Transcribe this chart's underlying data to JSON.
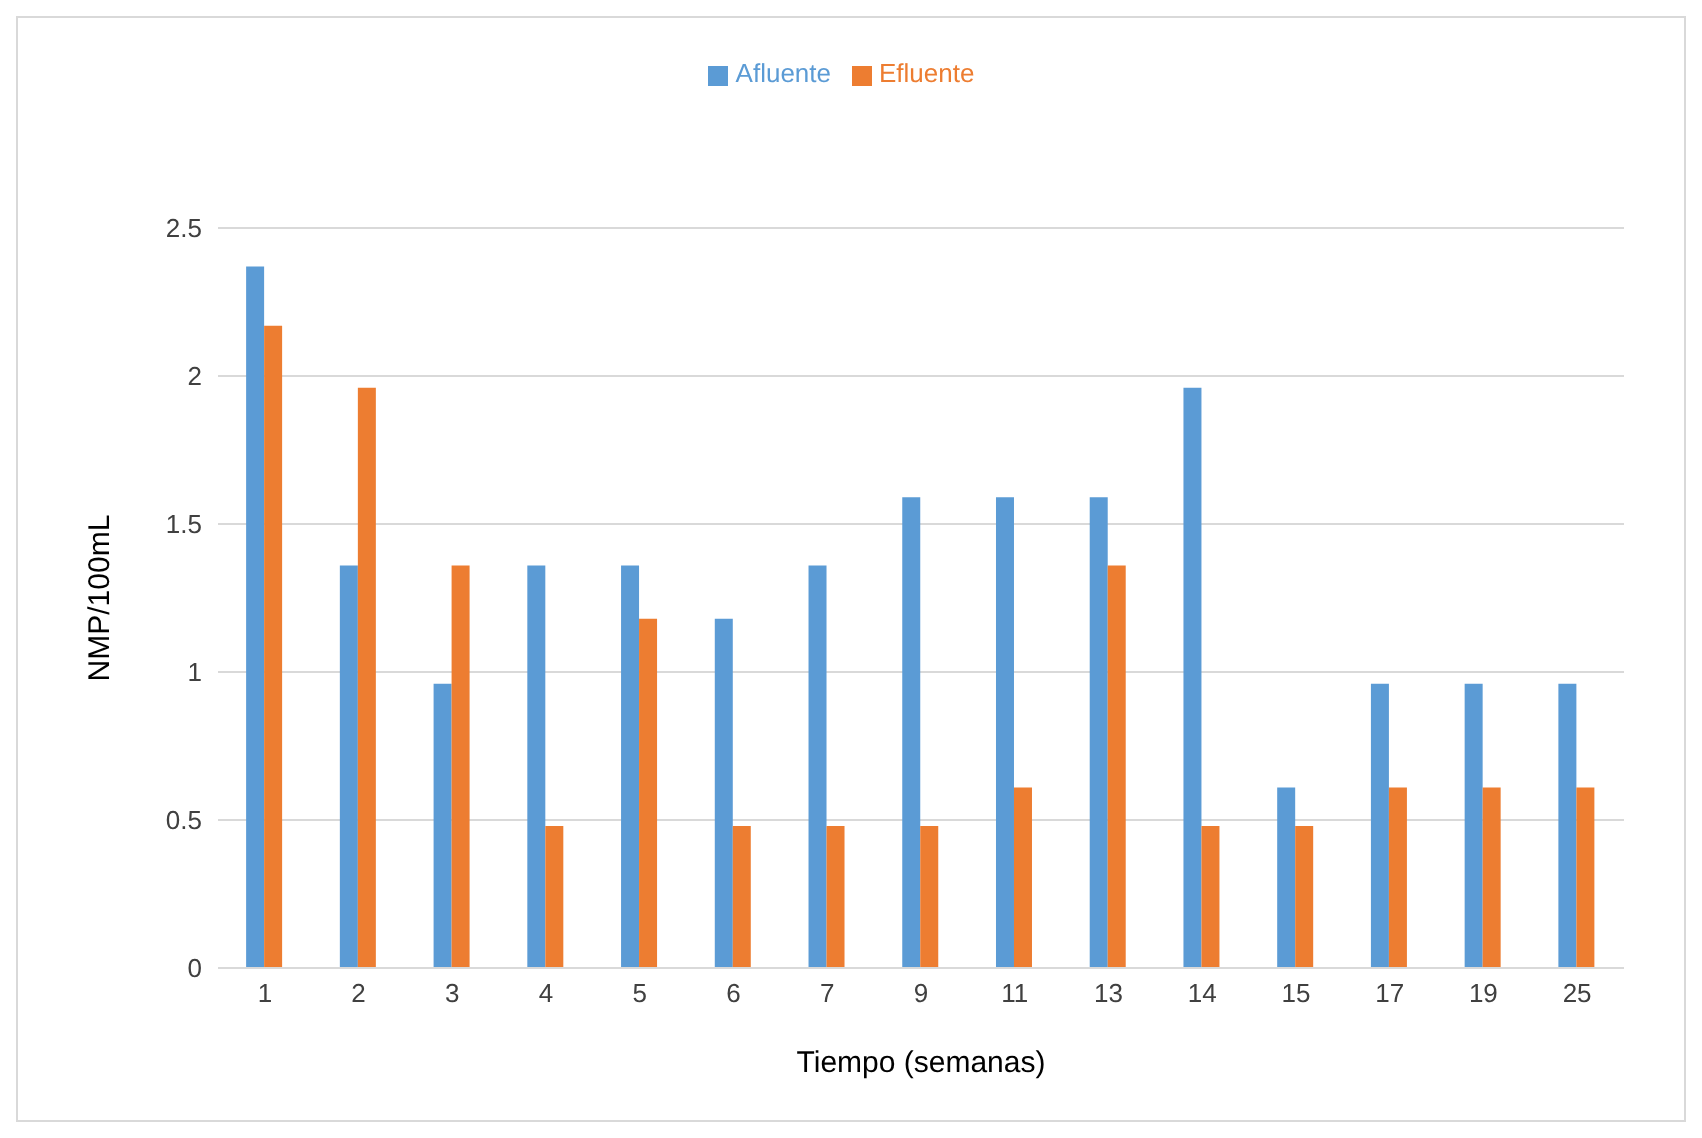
{
  "chart_data": {
    "type": "bar",
    "xlabel": "Tiempo (semanas)",
    "ylabel": "NMP/100mL",
    "categories": [
      "1",
      "2",
      "3",
      "4",
      "5",
      "6",
      "7",
      "9",
      "11",
      "13",
      "14",
      "15",
      "17",
      "19",
      "25"
    ],
    "series": [
      {
        "name": "Afluente",
        "color": "#5b9bd5",
        "values": [
          2.37,
          1.36,
          0.96,
          1.36,
          1.36,
          1.18,
          1.36,
          1.59,
          1.59,
          1.59,
          1.96,
          0.61,
          0.96,
          0.96,
          0.96
        ]
      },
      {
        "name": "Efluente",
        "color": "#ed7d31",
        "values": [
          2.17,
          1.96,
          1.36,
          0.48,
          1.18,
          0.48,
          0.48,
          0.48,
          0.61,
          1.36,
          0.48,
          0.48,
          0.61,
          0.61,
          0.61
        ]
      }
    ],
    "ylim": [
      0,
      2.5
    ],
    "yticks": [
      0,
      0.5,
      1,
      1.5,
      2,
      2.5
    ],
    "grid": "y",
    "legend": "top"
  }
}
